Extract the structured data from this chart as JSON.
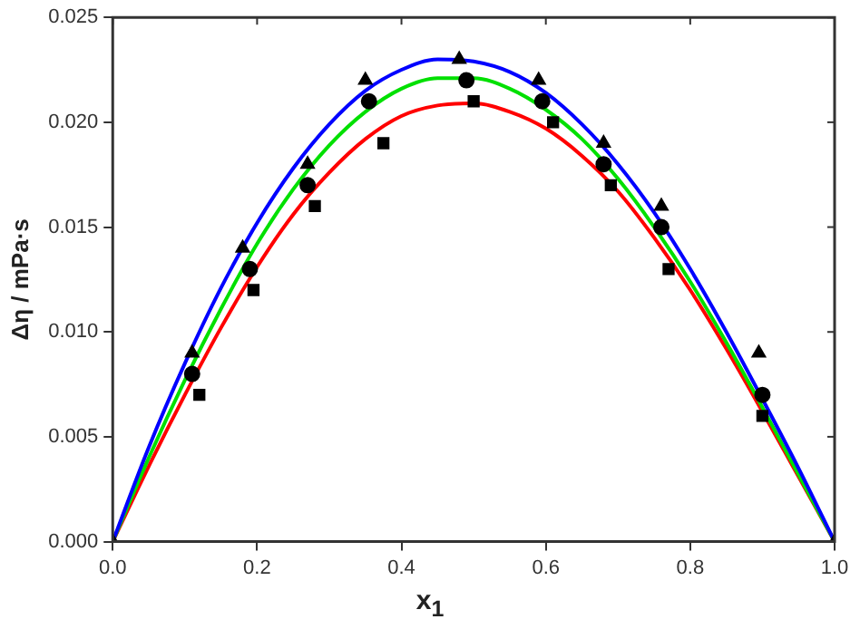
{
  "chart_data": {
    "type": "scatter",
    "xlabel": "x$_{1}$",
    "ylabel": "Δη / mPa·s",
    "xlim": [
      0,
      1
    ],
    "xticks": [
      {
        "value": 0,
        "label": "0.0"
      },
      {
        "value": 0.2,
        "label": "0.2"
      },
      {
        "value": 0.4,
        "label": "0.4"
      },
      {
        "value": 0.6,
        "label": "0.6"
      },
      {
        "value": 0.8,
        "label": "0.8"
      },
      {
        "value": 1,
        "label": "1.0"
      }
    ],
    "ylim": [
      0,
      0.025
    ],
    "yticks": [
      {
        "value": 0,
        "label": "0.000"
      },
      {
        "value": 0.005,
        "label": "0.005"
      },
      {
        "value": 0.01,
        "label": "0.010"
      },
      {
        "value": 0.015,
        "label": "0.015"
      },
      {
        "value": 0.02,
        "label": "0.020"
      },
      {
        "value": 0.025,
        "label": "0.025"
      }
    ],
    "grid": false,
    "legend": false,
    "series": [
      {
        "type": "line",
        "color": "#0000ff",
        "marker": "none",
        "x": [
          0,
          0.05,
          0.1,
          0.15,
          0.2,
          0.25,
          0.3,
          0.35,
          0.4,
          0.45,
          0.5,
          0.55,
          0.6,
          0.65,
          0.7,
          0.75,
          0.8,
          0.85,
          0.9,
          0.95,
          1
        ],
        "values": [
          0,
          0.0045,
          0.0085,
          0.0121,
          0.0152,
          0.0178,
          0.0199,
          0.0215,
          0.0225,
          0.023,
          0.0229,
          0.0224,
          0.0214,
          0.0199,
          0.018,
          0.0157,
          0.013,
          0.01,
          0.0068,
          0.0035,
          0
        ]
      },
      {
        "type": "line",
        "color": "#00e000",
        "marker": "none",
        "x": [
          0,
          0.05,
          0.1,
          0.15,
          0.2,
          0.25,
          0.3,
          0.35,
          0.4,
          0.45,
          0.5,
          0.55,
          0.6,
          0.65,
          0.7,
          0.75,
          0.8,
          0.85,
          0.9,
          0.95,
          1
        ],
        "values": [
          0,
          0.004,
          0.0077,
          0.0111,
          0.0142,
          0.0168,
          0.0189,
          0.0205,
          0.0216,
          0.0221,
          0.0221,
          0.0216,
          0.0206,
          0.0192,
          0.0173,
          0.015,
          0.0124,
          0.0095,
          0.0064,
          0.0032,
          0
        ]
      },
      {
        "type": "line",
        "color": "#ff0000",
        "marker": "none",
        "x": [
          0,
          0.05,
          0.1,
          0.15,
          0.2,
          0.25,
          0.3,
          0.35,
          0.4,
          0.45,
          0.5,
          0.55,
          0.6,
          0.65,
          0.7,
          0.75,
          0.8,
          0.85,
          0.9,
          0.95,
          1
        ],
        "values": [
          0,
          0.0036,
          0.007,
          0.0102,
          0.0131,
          0.0156,
          0.0176,
          0.0192,
          0.0203,
          0.0208,
          0.0209,
          0.0205,
          0.0197,
          0.0184,
          0.0167,
          0.0145,
          0.012,
          0.0092,
          0.0062,
          0.0031,
          0
        ]
      },
      {
        "color": "#000000",
        "marker": "triangle",
        "x": [
          0,
          0.11,
          0.18,
          0.27,
          0.35,
          0.48,
          0.59,
          0.68,
          0.76,
          0.895,
          1
        ],
        "values": [
          0,
          0.009,
          0.014,
          0.018,
          0.022,
          0.023,
          0.022,
          0.019,
          0.016,
          0.009,
          0
        ]
      },
      {
        "color": "#000000",
        "marker": "circle",
        "x": [
          0.11,
          0.19,
          0.27,
          0.355,
          0.49,
          0.595,
          0.68,
          0.76,
          0.9
        ],
        "values": [
          0.008,
          0.013,
          0.017,
          0.021,
          0.022,
          0.021,
          0.018,
          0.015,
          0.007
        ]
      },
      {
        "color": "#000000",
        "marker": "square",
        "x": [
          0.12,
          0.195,
          0.28,
          0.375,
          0.5,
          0.61,
          0.69,
          0.77,
          0.9
        ],
        "values": [
          0.007,
          0.012,
          0.016,
          0.019,
          0.021,
          0.02,
          0.017,
          0.013,
          0.006
        ]
      }
    ]
  }
}
